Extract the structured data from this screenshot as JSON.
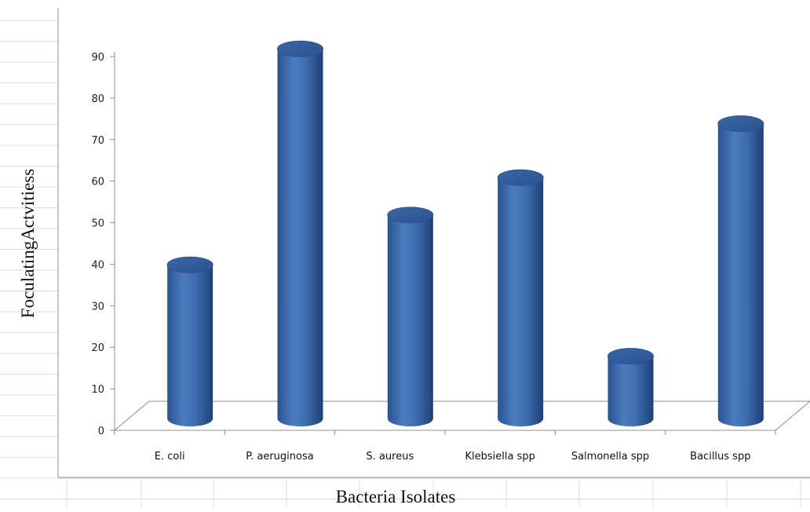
{
  "chart_data": {
    "type": "bar",
    "style": "3d-cylinder",
    "categories": [
      "E. coli",
      "P. aeruginosa",
      "S. aureus",
      "Klebsiella spp",
      "Salmonella spp",
      "Bacillus spp"
    ],
    "values": [
      37,
      89,
      49,
      58,
      15,
      71
    ],
    "xlabel": "Bacteria Isolates",
    "ylabel": "FoculatingActvitiess",
    "ylim": [
      0,
      90
    ],
    "yticks": [
      0,
      10,
      20,
      30,
      40,
      50,
      60,
      70,
      80,
      90
    ],
    "grid": false,
    "legend": "none",
    "bar_color": "#3f6fb1"
  }
}
